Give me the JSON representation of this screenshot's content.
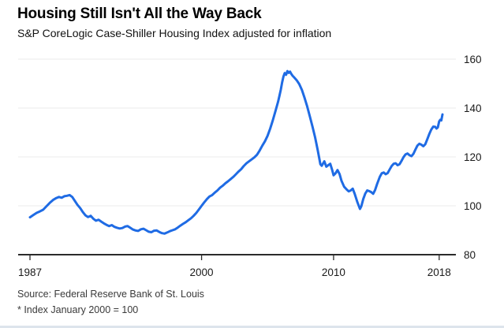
{
  "header": {
    "title": "Housing Still Isn't All the Way Back",
    "subtitle": "S&P CoreLogic Case-Shiller Housing Index adjusted for inflation"
  },
  "footer": {
    "source": "Source: Federal Reserve Bank of St. Louis",
    "footnote": "* Index January 2000 = 100"
  },
  "chart_data": {
    "type": "line",
    "title": "Housing Still Isn't All the Way Back",
    "subtitle": "S&P CoreLogic Case-Shiller Housing Index adjusted for inflation",
    "xlabel": "",
    "ylabel": "",
    "xlim": [
      1987,
      2018.25
    ],
    "ylim": [
      80,
      160
    ],
    "x_ticks": [
      1987,
      2000,
      2010,
      2018
    ],
    "y_ticks": [
      80,
      100,
      120,
      140,
      160
    ],
    "grid": "horizontal",
    "y_axis_side": "right",
    "legend": "none",
    "colors": {
      "line": "#1f6be4",
      "axis": "#2b2b2b",
      "grid": "#ebebeb",
      "tick_label": "#1a1a1a"
    },
    "series": [
      {
        "name": "S&P CoreLogic Case-Shiller Housing Index adjusted for inflation",
        "points": [
          [
            1987.0,
            95.3
          ],
          [
            1987.25,
            96.2
          ],
          [
            1987.5,
            97.1
          ],
          [
            1987.75,
            97.7
          ],
          [
            1988.0,
            98.4
          ],
          [
            1988.25,
            99.8
          ],
          [
            1988.5,
            101.2
          ],
          [
            1988.75,
            102.4
          ],
          [
            1989.0,
            103.2
          ],
          [
            1989.2,
            103.6
          ],
          [
            1989.4,
            103.3
          ],
          [
            1989.6,
            103.9
          ],
          [
            1989.8,
            104.1
          ],
          [
            1990.0,
            104.4
          ],
          [
            1990.2,
            103.6
          ],
          [
            1990.4,
            102.0
          ],
          [
            1990.6,
            100.4
          ],
          [
            1990.8,
            99.1
          ],
          [
            1991.0,
            97.5
          ],
          [
            1991.2,
            96.1
          ],
          [
            1991.4,
            95.4
          ],
          [
            1991.6,
            95.9
          ],
          [
            1991.8,
            94.7
          ],
          [
            1992.0,
            93.9
          ],
          [
            1992.2,
            94.3
          ],
          [
            1992.4,
            93.5
          ],
          [
            1992.6,
            92.8
          ],
          [
            1992.8,
            92.2
          ],
          [
            1993.0,
            91.7
          ],
          [
            1993.2,
            92.1
          ],
          [
            1993.4,
            91.4
          ],
          [
            1993.6,
            91.0
          ],
          [
            1993.8,
            90.7
          ],
          [
            1994.0,
            90.9
          ],
          [
            1994.2,
            91.5
          ],
          [
            1994.4,
            91.7
          ],
          [
            1994.6,
            91.0
          ],
          [
            1994.8,
            90.3
          ],
          [
            1995.0,
            89.9
          ],
          [
            1995.2,
            89.7
          ],
          [
            1995.4,
            90.4
          ],
          [
            1995.6,
            90.6
          ],
          [
            1995.8,
            90.0
          ],
          [
            1996.0,
            89.4
          ],
          [
            1996.2,
            89.2
          ],
          [
            1996.4,
            89.8
          ],
          [
            1996.6,
            89.9
          ],
          [
            1996.8,
            89.3
          ],
          [
            1997.0,
            88.8
          ],
          [
            1997.2,
            88.6
          ],
          [
            1997.4,
            89.1
          ],
          [
            1997.6,
            89.6
          ],
          [
            1997.8,
            90.0
          ],
          [
            1998.0,
            90.4
          ],
          [
            1998.2,
            91.1
          ],
          [
            1998.4,
            91.9
          ],
          [
            1998.6,
            92.6
          ],
          [
            1998.8,
            93.3
          ],
          [
            1999.0,
            94.1
          ],
          [
            1999.2,
            94.9
          ],
          [
            1999.4,
            95.9
          ],
          [
            1999.6,
            97.1
          ],
          [
            1999.8,
            98.5
          ],
          [
            2000.0,
            100.0
          ],
          [
            2000.2,
            101.4
          ],
          [
            2000.4,
            102.7
          ],
          [
            2000.6,
            103.8
          ],
          [
            2000.8,
            104.4
          ],
          [
            2001.0,
            105.4
          ],
          [
            2001.2,
            106.3
          ],
          [
            2001.4,
            107.4
          ],
          [
            2001.6,
            108.2
          ],
          [
            2001.8,
            109.2
          ],
          [
            2002.0,
            110.0
          ],
          [
            2002.2,
            110.9
          ],
          [
            2002.4,
            111.8
          ],
          [
            2002.6,
            112.9
          ],
          [
            2002.8,
            114.0
          ],
          [
            2003.0,
            115.0
          ],
          [
            2003.2,
            116.3
          ],
          [
            2003.4,
            117.4
          ],
          [
            2003.6,
            118.2
          ],
          [
            2003.8,
            119.0
          ],
          [
            2004.0,
            119.8
          ],
          [
            2004.2,
            120.9
          ],
          [
            2004.4,
            122.6
          ],
          [
            2004.6,
            124.6
          ],
          [
            2004.8,
            126.4
          ],
          [
            2005.0,
            128.6
          ],
          [
            2005.2,
            131.6
          ],
          [
            2005.4,
            135.0
          ],
          [
            2005.6,
            138.8
          ],
          [
            2005.8,
            142.6
          ],
          [
            2005.9,
            145.0
          ],
          [
            2006.0,
            147.5
          ],
          [
            2006.1,
            150.5
          ],
          [
            2006.2,
            152.8
          ],
          [
            2006.3,
            154.3
          ],
          [
            2006.4,
            153.6
          ],
          [
            2006.5,
            155.1
          ],
          [
            2006.6,
            154.4
          ],
          [
            2006.7,
            154.9
          ],
          [
            2006.8,
            153.9
          ],
          [
            2006.9,
            153.2
          ],
          [
            2007.0,
            152.6
          ],
          [
            2007.2,
            151.4
          ],
          [
            2007.4,
            149.8
          ],
          [
            2007.6,
            147.4
          ],
          [
            2007.8,
            144.2
          ],
          [
            2008.0,
            140.6
          ],
          [
            2008.2,
            136.6
          ],
          [
            2008.4,
            132.4
          ],
          [
            2008.6,
            128.0
          ],
          [
            2008.8,
            122.8
          ],
          [
            2009.0,
            117.0
          ],
          [
            2009.1,
            116.4
          ],
          [
            2009.3,
            118.2
          ],
          [
            2009.45,
            116.0
          ],
          [
            2009.6,
            116.6
          ],
          [
            2009.75,
            117.2
          ],
          [
            2009.9,
            114.5
          ],
          [
            2010.0,
            112.5
          ],
          [
            2010.15,
            113.3
          ],
          [
            2010.3,
            114.6
          ],
          [
            2010.45,
            113.0
          ],
          [
            2010.6,
            110.2
          ],
          [
            2010.8,
            107.8
          ],
          [
            2011.0,
            106.6
          ],
          [
            2011.15,
            105.9
          ],
          [
            2011.3,
            106.3
          ],
          [
            2011.45,
            107.0
          ],
          [
            2011.6,
            104.9
          ],
          [
            2011.8,
            101.5
          ],
          [
            2012.0,
            98.7
          ],
          [
            2012.1,
            99.8
          ],
          [
            2012.25,
            102.8
          ],
          [
            2012.4,
            105.0
          ],
          [
            2012.55,
            106.3
          ],
          [
            2012.7,
            106.0
          ],
          [
            2012.85,
            105.6
          ],
          [
            2013.0,
            104.9
          ],
          [
            2013.15,
            106.5
          ],
          [
            2013.3,
            109.0
          ],
          [
            2013.5,
            111.8
          ],
          [
            2013.65,
            113.3
          ],
          [
            2013.8,
            113.6
          ],
          [
            2013.95,
            112.9
          ],
          [
            2014.1,
            113.4
          ],
          [
            2014.25,
            114.9
          ],
          [
            2014.4,
            116.3
          ],
          [
            2014.55,
            117.2
          ],
          [
            2014.7,
            117.4
          ],
          [
            2014.85,
            116.6
          ],
          [
            2015.0,
            117.0
          ],
          [
            2015.15,
            118.4
          ],
          [
            2015.3,
            119.9
          ],
          [
            2015.45,
            121.0
          ],
          [
            2015.6,
            121.4
          ],
          [
            2015.75,
            120.7
          ],
          [
            2015.9,
            120.3
          ],
          [
            2016.05,
            121.3
          ],
          [
            2016.2,
            123.0
          ],
          [
            2016.35,
            124.6
          ],
          [
            2016.5,
            125.4
          ],
          [
            2016.65,
            125.0
          ],
          [
            2016.8,
            124.4
          ],
          [
            2016.95,
            125.2
          ],
          [
            2017.1,
            127.3
          ],
          [
            2017.25,
            129.4
          ],
          [
            2017.4,
            131.2
          ],
          [
            2017.55,
            132.4
          ],
          [
            2017.7,
            132.3
          ],
          [
            2017.8,
            131.6
          ],
          [
            2017.9,
            132.1
          ],
          [
            2018.0,
            134.5
          ],
          [
            2018.08,
            135.2
          ],
          [
            2018.16,
            134.9
          ],
          [
            2018.25,
            137.4
          ]
        ]
      }
    ]
  }
}
